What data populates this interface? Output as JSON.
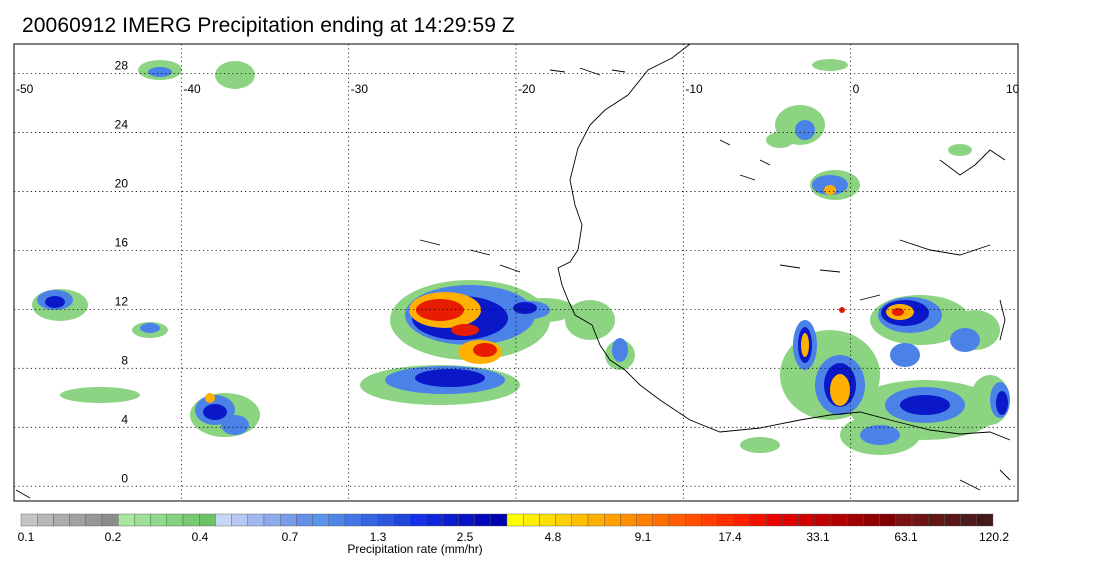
{
  "title": "20060912 IMERG Precipitation ending at 14:29:59 Z",
  "map": {
    "lon_range": [
      -50,
      10
    ],
    "lat_range": [
      -1,
      30
    ],
    "lon_ticks": [
      -50,
      -40,
      -30,
      -20,
      -10,
      0,
      10
    ],
    "lon_labels": [
      "-50",
      "-40",
      "-30",
      "-20",
      "-10",
      "0",
      "10"
    ],
    "lat_ticks": [
      0,
      4,
      8,
      12,
      16,
      20,
      24,
      28
    ],
    "lat_labels": [
      "0",
      "4",
      "8",
      "12",
      "16",
      "20",
      "24",
      "28"
    ],
    "grid": "dotted"
  },
  "colorbar": {
    "label": "Precipitation rate (mm/hr)",
    "tick_labels": [
      "0.1",
      "0.2",
      "0.4",
      "0.7",
      "1.3",
      "2.5",
      "4.8",
      "9.1",
      "17.4",
      "33.1",
      "63.1",
      "120.2"
    ],
    "groups": [
      [
        "#c4c4c4",
        "#b8b8b8",
        "#adadad",
        "#a2a2a2",
        "#979797",
        "#8c8c8c"
      ],
      [
        "#a8e6a2",
        "#9cdf96",
        "#90d88a",
        "#84d17e",
        "#78ca72",
        "#6cc366"
      ],
      [
        "#c8d6f5",
        "#b4c8f2",
        "#a0baef",
        "#8cacec",
        "#789eea",
        "#6490e7"
      ],
      [
        "#5b96ee",
        "#4f86ea",
        "#4376e6",
        "#3766e2",
        "#2b56de",
        "#1f46da"
      ],
      [
        "#1530e6",
        "#1026dc",
        "#0b1cd2",
        "#0612c8",
        "#0208be",
        "#0000b4"
      ],
      [
        "#ffff00",
        "#ffef00",
        "#ffdf00",
        "#ffcf00",
        "#ffbf00",
        "#ffaf00"
      ],
      [
        "#ff9f00",
        "#ff8f00",
        "#ff7f00",
        "#ff6f00",
        "#ff5f00",
        "#ff4f00"
      ],
      [
        "#ff3f00",
        "#ff2f00",
        "#ff1f00",
        "#f71000",
        "#ee0000",
        "#e00000"
      ],
      [
        "#d00000",
        "#c00000",
        "#b00000",
        "#a00000",
        "#900000",
        "#800000"
      ],
      [
        "#7a1010",
        "#6e1414",
        "#621616",
        "#581818",
        "#501a1a",
        "#461818"
      ]
    ]
  }
}
